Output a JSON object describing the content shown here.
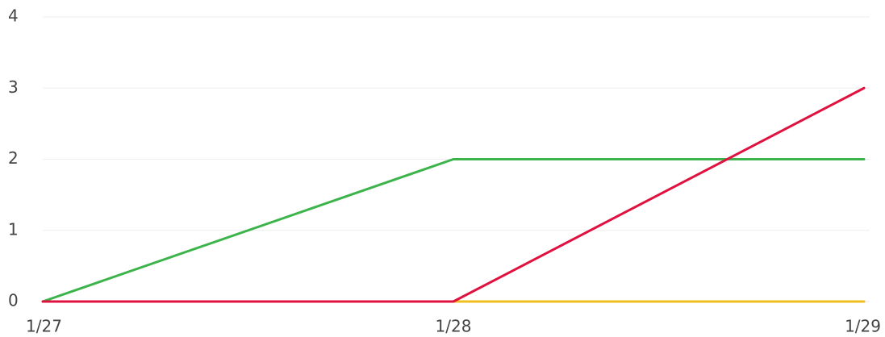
{
  "chart_data": {
    "type": "line",
    "categories": [
      "1/27",
      "1/28",
      "1/29"
    ],
    "series": [
      {
        "color": "#f0bf1f",
        "values": [
          0,
          0,
          0
        ]
      },
      {
        "color": "#3cb44b",
        "values": [
          0,
          2,
          2
        ]
      },
      {
        "color": "#e0103f",
        "values": [
          0,
          0,
          3
        ]
      }
    ],
    "ylim": [
      0,
      4
    ],
    "yticks": [
      0,
      1,
      2,
      3,
      4
    ],
    "grid": true
  }
}
